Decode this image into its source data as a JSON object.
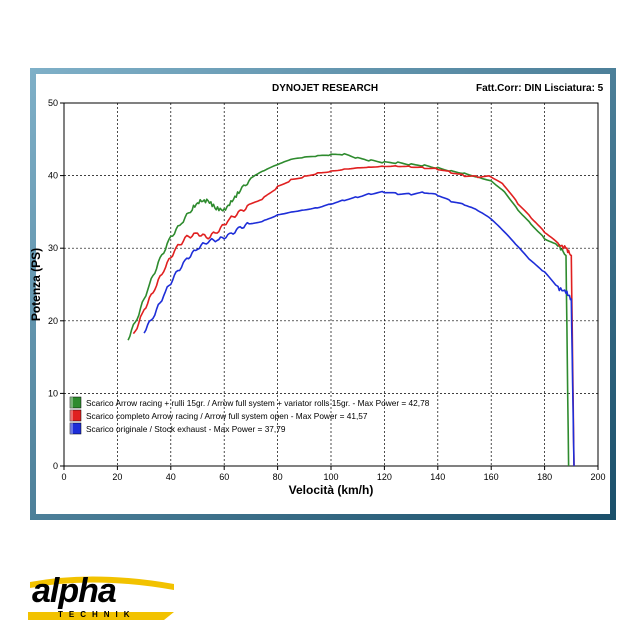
{
  "header": {
    "title": "DYNOJET RESEARCH",
    "corr": "Fatt.Corr: DIN  Lisciatura: 5"
  },
  "brand": {
    "logo_text": "alpha",
    "logo_sub": "TECHNIK",
    "colors": {
      "yellow": "#f2c200",
      "black": "#000000"
    }
  },
  "chart_data": {
    "type": "line",
    "xlabel": "Velocità (km/h)",
    "ylabel": "Potenza (PS)",
    "xlim": [
      0,
      200
    ],
    "ylim": [
      0,
      50
    ],
    "xticks": [
      0,
      20,
      40,
      60,
      80,
      100,
      120,
      140,
      160,
      180,
      200
    ],
    "yticks": [
      0,
      10,
      20,
      30,
      40,
      50
    ],
    "grid": true,
    "legend_position": "bottom-left",
    "series": [
      {
        "name": "Scarico Arrow racing + rulli 15gr. / Arrow full system + variator rolls 15gr. - Max Power = 42,78",
        "color": "#2e8b2e",
        "x": [
          24,
          28,
          32,
          36,
          40,
          44,
          48,
          51,
          54,
          57,
          60,
          63,
          66,
          70,
          75,
          80,
          85,
          90,
          95,
          100,
          105,
          110,
          115,
          120,
          125,
          130,
          135,
          140,
          145,
          150,
          155,
          160,
          165,
          170,
          175,
          180,
          185,
          188,
          189
        ],
        "y": [
          17.5,
          21,
          25,
          28.5,
          31.5,
          33.5,
          35.5,
          36.5,
          36.5,
          35.5,
          35.2,
          36.5,
          38,
          39.5,
          40.5,
          41.3,
          42,
          42.3,
          42.5,
          42.7,
          42.8,
          42.3,
          42,
          41.8,
          41.8,
          41.6,
          41.5,
          41.2,
          40.8,
          40.5,
          40,
          39.5,
          38,
          35.5,
          33.5,
          31.5,
          30.5,
          29,
          0
        ]
      },
      {
        "name": "Scarico completo Arrow racing / Arrow full system open - Max Power = 41,57",
        "color": "#e02020",
        "x": [
          26,
          30,
          34,
          38,
          42,
          46,
          50,
          54,
          58,
          62,
          66,
          70,
          75,
          80,
          85,
          90,
          95,
          100,
          105,
          110,
          115,
          120,
          125,
          130,
          135,
          140,
          145,
          150,
          155,
          160,
          165,
          170,
          175,
          180,
          185,
          188,
          190,
          191
        ],
        "y": [
          18,
          21.5,
          24.5,
          27.5,
          30,
          31.5,
          32,
          31.5,
          32.5,
          34,
          35,
          36,
          37,
          38.5,
          39.5,
          40,
          40.5,
          40.8,
          41.1,
          41.3,
          41.4,
          41.5,
          41.5,
          41.4,
          41.2,
          41,
          40.5,
          40,
          39.8,
          39.8,
          38.5,
          36,
          34,
          32,
          30.5,
          30,
          29,
          0
        ]
      },
      {
        "name": "Scarico originale / Stock exhaust - Max Power = 37,79",
        "color": "#1e2ed8",
        "x": [
          30,
          34,
          38,
          42,
          46,
          50,
          54,
          58,
          62,
          66,
          70,
          75,
          80,
          85,
          90,
          95,
          100,
          105,
          110,
          115,
          120,
          125,
          130,
          135,
          140,
          145,
          150,
          155,
          160,
          165,
          170,
          175,
          180,
          185,
          188,
          190,
          191
        ],
        "y": [
          18.5,
          21,
          24,
          26.5,
          28.5,
          30,
          31,
          31.2,
          31.8,
          32.8,
          33.5,
          34,
          34.8,
          35.2,
          35.5,
          35.8,
          36.3,
          36.8,
          37.2,
          37.6,
          37.8,
          37.5,
          37.4,
          37.6,
          37.2,
          36.3,
          35.8,
          35,
          33.8,
          32,
          30,
          28,
          26.5,
          24.5,
          24,
          23,
          0
        ]
      }
    ]
  }
}
